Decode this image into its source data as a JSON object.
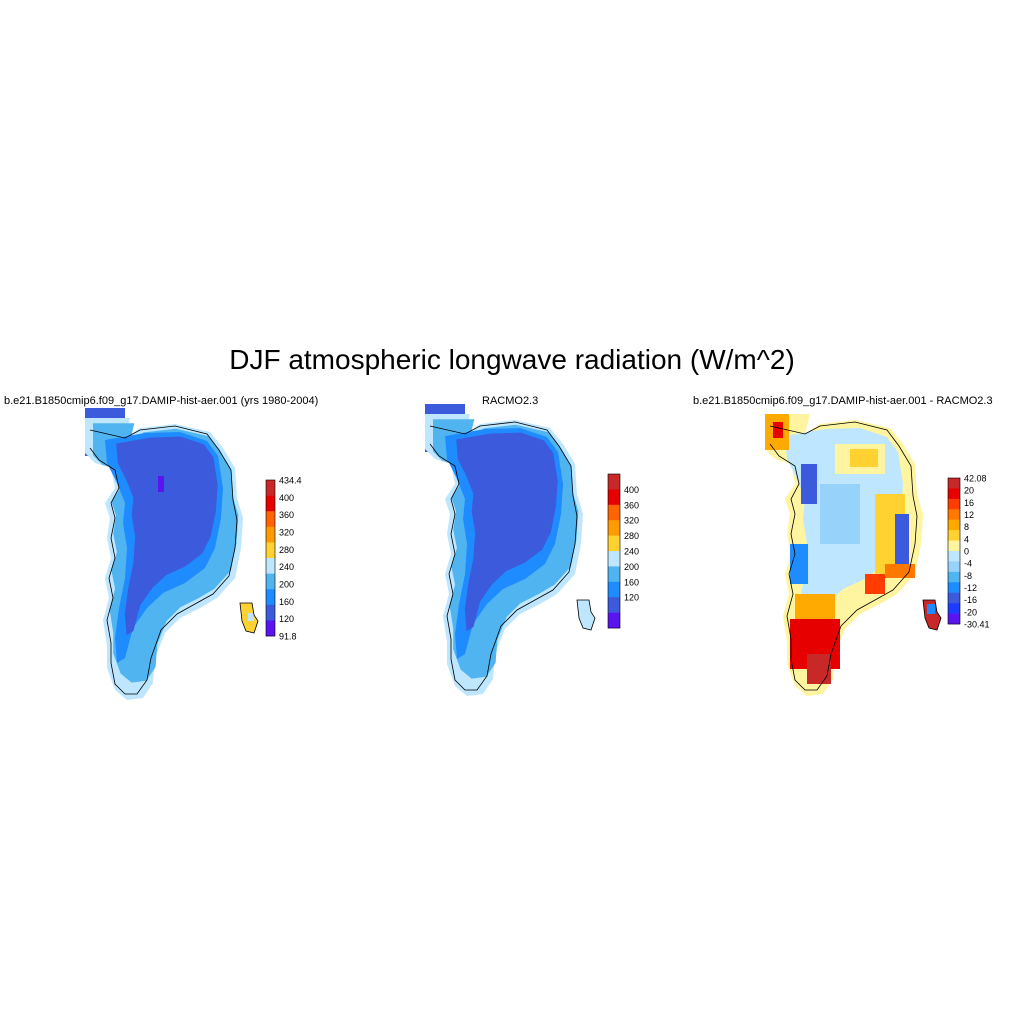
{
  "figure": {
    "title": "DJF atmospheric longwave radiation (W/m^2)"
  },
  "panels": [
    {
      "title": "b.e21.B1850cmip6.f09_g17.DAMIP-hist-aer.001 (yrs 1980-2004)",
      "colorbar": {
        "labels": [
          "434.4",
          "400",
          "360",
          "320",
          "280",
          "240",
          "200",
          "160",
          "120",
          "91.8"
        ],
        "colors": [
          "#c82828",
          "#e60000",
          "#ff6400",
          "#ff9b00",
          "#ffd232",
          "#bee6ff",
          "#50b4f0",
          "#1e8cff",
          "#3c5adc",
          "#5a14f0"
        ]
      }
    },
    {
      "title": "RACMO2.3",
      "colorbar": {
        "labels": [
          "400",
          "360",
          "320",
          "280",
          "240",
          "200",
          "160",
          "120"
        ],
        "colors": [
          "#c82828",
          "#e60000",
          "#ff6400",
          "#ff9b00",
          "#ffd232",
          "#bee6ff",
          "#50b4f0",
          "#1e8cff",
          "#3c5adc",
          "#5a14f0"
        ]
      }
    },
    {
      "title": "b.e21.B1850cmip6.f09_g17.DAMIP-hist-aer.001 - RACMO2.3",
      "colorbar": {
        "labels": [
          "42.08",
          "20",
          "16",
          "12",
          "8",
          "4",
          "0",
          "-4",
          "-8",
          "-12",
          "-16",
          "-20",
          "-30.41"
        ],
        "colors": [
          "#c82828",
          "#e60000",
          "#ff3c00",
          "#ff7800",
          "#ffaa00",
          "#ffd232",
          "#fff5a0",
          "#bee6ff",
          "#96d2fa",
          "#50b4f0",
          "#1e8cff",
          "#3c5adc",
          "#1e3cff",
          "#5a14f0"
        ]
      }
    }
  ]
}
